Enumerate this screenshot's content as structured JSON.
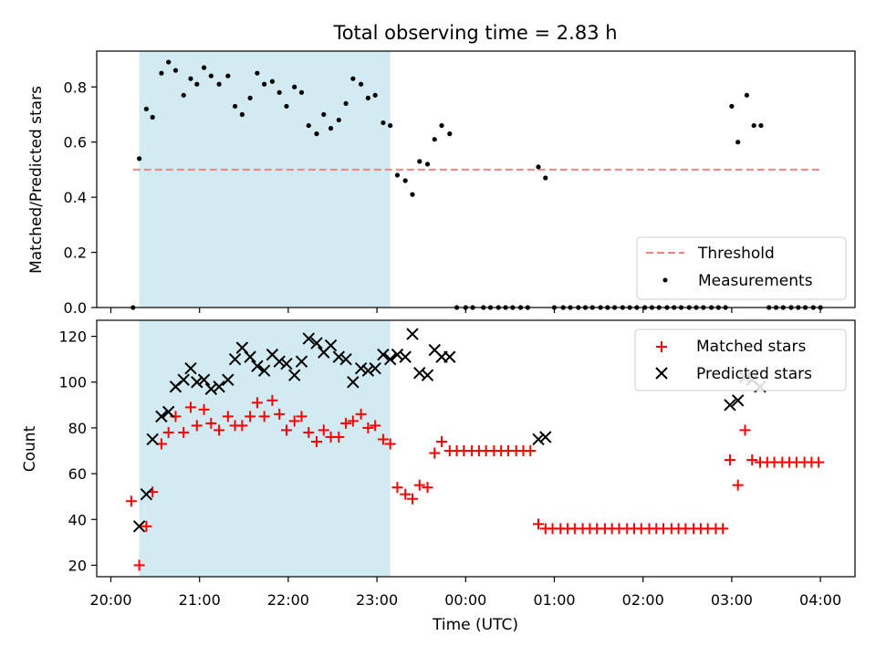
{
  "figure": {
    "title": "Total observing time = 2.83 h",
    "x_axis_label": "Time (UTC)",
    "x_tick_labels": [
      "20:00",
      "21:00",
      "22:00",
      "23:00",
      "00:00",
      "01:00",
      "02:00",
      "03:00",
      "04:00"
    ],
    "x_unit": "hours after 20:00 UTC",
    "shaded_interval": [
      0.32,
      3.15
    ],
    "shade_color": "#add8e6"
  },
  "chart_data": [
    {
      "type": "scatter",
      "ylabel": "Matched/Predicted stars",
      "ylim": [
        0,
        0.93
      ],
      "yticks": [
        "0.0",
        "0.2",
        "0.4",
        "0.6",
        "0.8"
      ],
      "grid": false,
      "legend": {
        "placement": "lower-right",
        "entries": [
          "Threshold",
          "Measurements"
        ]
      },
      "threshold": {
        "name": "Threshold",
        "y": 0.5,
        "x_range": [
          0.25,
          8.0
        ],
        "color": "#ff7f7f",
        "style": "dashed"
      },
      "series": [
        {
          "name": "Measurements",
          "marker": "dot",
          "color": "#000000",
          "points": [
            [
              0.25,
              0.0
            ],
            [
              0.32,
              0.54
            ],
            [
              0.4,
              0.72
            ],
            [
              0.47,
              0.69
            ],
            [
              0.57,
              0.85
            ],
            [
              0.65,
              0.89
            ],
            [
              0.73,
              0.86
            ],
            [
              0.82,
              0.77
            ],
            [
              0.9,
              0.83
            ],
            [
              0.97,
              0.81
            ],
            [
              1.05,
              0.87
            ],
            [
              1.13,
              0.84
            ],
            [
              1.22,
              0.81
            ],
            [
              1.32,
              0.84
            ],
            [
              1.4,
              0.73
            ],
            [
              1.48,
              0.7
            ],
            [
              1.57,
              0.76
            ],
            [
              1.65,
              0.85
            ],
            [
              1.73,
              0.81
            ],
            [
              1.82,
              0.82
            ],
            [
              1.9,
              0.78
            ],
            [
              1.98,
              0.73
            ],
            [
              2.07,
              0.8
            ],
            [
              2.15,
              0.78
            ],
            [
              2.23,
              0.66
            ],
            [
              2.32,
              0.63
            ],
            [
              2.4,
              0.7
            ],
            [
              2.48,
              0.65
            ],
            [
              2.57,
              0.68
            ],
            [
              2.65,
              0.74
            ],
            [
              2.73,
              0.83
            ],
            [
              2.82,
              0.81
            ],
            [
              2.9,
              0.76
            ],
            [
              2.98,
              0.77
            ],
            [
              3.07,
              0.67
            ],
            [
              3.15,
              0.66
            ],
            [
              3.23,
              0.48
            ],
            [
              3.32,
              0.46
            ],
            [
              3.4,
              0.41
            ],
            [
              3.48,
              0.53
            ],
            [
              3.57,
              0.52
            ],
            [
              3.65,
              0.61
            ],
            [
              3.73,
              0.66
            ],
            [
              3.82,
              0.63
            ],
            [
              3.9,
              0.0
            ],
            [
              4.0,
              0.0
            ],
            [
              4.08,
              0.0
            ],
            [
              4.2,
              0.0
            ],
            [
              4.28,
              0.0
            ],
            [
              4.37,
              0.0
            ],
            [
              4.45,
              0.0
            ],
            [
              4.53,
              0.0
            ],
            [
              4.62,
              0.0
            ],
            [
              4.7,
              0.0
            ],
            [
              4.82,
              0.51
            ],
            [
              4.9,
              0.47
            ],
            [
              5.0,
              0.0
            ],
            [
              5.1,
              0.0
            ],
            [
              5.18,
              0.0
            ],
            [
              5.27,
              0.0
            ],
            [
              5.35,
              0.0
            ],
            [
              5.43,
              0.0
            ],
            [
              5.52,
              0.0
            ],
            [
              5.6,
              0.0
            ],
            [
              5.68,
              0.0
            ],
            [
              5.77,
              0.0
            ],
            [
              5.85,
              0.0
            ],
            [
              5.93,
              0.0
            ],
            [
              6.02,
              0.0
            ],
            [
              6.1,
              0.0
            ],
            [
              6.18,
              0.0
            ],
            [
              6.27,
              0.0
            ],
            [
              6.35,
              0.0
            ],
            [
              6.43,
              0.0
            ],
            [
              6.52,
              0.0
            ],
            [
              6.6,
              0.0
            ],
            [
              6.68,
              0.0
            ],
            [
              6.77,
              0.0
            ],
            [
              6.85,
              0.0
            ],
            [
              6.93,
              0.0
            ],
            [
              7.0,
              0.73
            ],
            [
              7.07,
              0.6
            ],
            [
              7.17,
              0.77
            ],
            [
              7.25,
              0.66
            ],
            [
              7.33,
              0.66
            ],
            [
              7.42,
              0.0
            ],
            [
              7.5,
              0.0
            ],
            [
              7.58,
              0.0
            ],
            [
              7.67,
              0.0
            ],
            [
              7.75,
              0.0
            ],
            [
              7.83,
              0.0
            ],
            [
              7.92,
              0.0
            ],
            [
              8.0,
              0.0
            ]
          ]
        }
      ]
    },
    {
      "type": "scatter",
      "ylabel": "Count",
      "ylim": [
        15,
        127
      ],
      "yticks": [
        "20",
        "40",
        "60",
        "80",
        "100",
        "120"
      ],
      "grid": false,
      "legend": {
        "placement": "top-right",
        "entries": [
          "Matched stars",
          "Predicted stars"
        ]
      },
      "series": [
        {
          "name": "Matched stars",
          "marker": "plus",
          "color": "#ff0000",
          "points": [
            [
              0.23,
              48
            ],
            [
              0.32,
              20
            ],
            [
              0.4,
              37
            ],
            [
              0.47,
              52
            ],
            [
              0.57,
              73
            ],
            [
              0.65,
              78
            ],
            [
              0.73,
              85
            ],
            [
              0.82,
              78
            ],
            [
              0.9,
              89
            ],
            [
              0.97,
              81
            ],
            [
              1.05,
              88
            ],
            [
              1.13,
              82
            ],
            [
              1.22,
              79
            ],
            [
              1.32,
              85
            ],
            [
              1.4,
              81
            ],
            [
              1.48,
              81
            ],
            [
              1.57,
              85
            ],
            [
              1.65,
              91
            ],
            [
              1.73,
              85
            ],
            [
              1.82,
              92
            ],
            [
              1.9,
              86
            ],
            [
              1.98,
              79
            ],
            [
              2.07,
              83
            ],
            [
              2.15,
              85
            ],
            [
              2.23,
              78
            ],
            [
              2.32,
              74
            ],
            [
              2.4,
              79
            ],
            [
              2.48,
              76
            ],
            [
              2.57,
              76
            ],
            [
              2.65,
              82
            ],
            [
              2.73,
              83
            ],
            [
              2.82,
              86
            ],
            [
              2.9,
              80
            ],
            [
              2.98,
              81
            ],
            [
              3.07,
              75
            ],
            [
              3.15,
              73
            ],
            [
              3.23,
              54
            ],
            [
              3.32,
              51
            ],
            [
              3.4,
              49
            ],
            [
              3.48,
              55
            ],
            [
              3.57,
              54
            ],
            [
              3.65,
              69
            ],
            [
              3.73,
              74
            ],
            [
              3.82,
              70
            ],
            [
              3.9,
              70
            ],
            [
              3.98,
              70
            ],
            [
              4.07,
              70
            ],
            [
              4.15,
              70
            ],
            [
              4.23,
              70
            ],
            [
              4.32,
              70
            ],
            [
              4.4,
              70
            ],
            [
              4.48,
              70
            ],
            [
              4.57,
              70
            ],
            [
              4.65,
              70
            ],
            [
              4.73,
              70
            ],
            [
              4.82,
              38
            ],
            [
              4.9,
              36
            ],
            [
              4.98,
              36
            ],
            [
              5.07,
              36
            ],
            [
              5.15,
              36
            ],
            [
              5.23,
              36
            ],
            [
              5.32,
              36
            ],
            [
              5.4,
              36
            ],
            [
              5.48,
              36
            ],
            [
              5.57,
              36
            ],
            [
              5.65,
              36
            ],
            [
              5.73,
              36
            ],
            [
              5.82,
              36
            ],
            [
              5.9,
              36
            ],
            [
              5.98,
              36
            ],
            [
              6.07,
              36
            ],
            [
              6.15,
              36
            ],
            [
              6.23,
              36
            ],
            [
              6.32,
              36
            ],
            [
              6.4,
              36
            ],
            [
              6.48,
              36
            ],
            [
              6.57,
              36
            ],
            [
              6.65,
              36
            ],
            [
              6.73,
              36
            ],
            [
              6.82,
              36
            ],
            [
              6.9,
              36
            ],
            [
              6.98,
              66
            ],
            [
              7.07,
              55
            ],
            [
              7.15,
              79
            ],
            [
              7.23,
              66
            ],
            [
              7.32,
              65
            ],
            [
              7.4,
              65
            ],
            [
              7.48,
              65
            ],
            [
              7.57,
              65
            ],
            [
              7.65,
              65
            ],
            [
              7.73,
              65
            ],
            [
              7.82,
              65
            ],
            [
              7.9,
              65
            ],
            [
              7.98,
              65
            ]
          ]
        },
        {
          "name": "Predicted stars",
          "marker": "x",
          "color": "#000000",
          "points": [
            [
              0.32,
              37
            ],
            [
              0.4,
              51
            ],
            [
              0.47,
              75
            ],
            [
              0.57,
              85
            ],
            [
              0.65,
              87
            ],
            [
              0.73,
              98
            ],
            [
              0.82,
              101
            ],
            [
              0.9,
              106
            ],
            [
              0.97,
              100
            ],
            [
              1.05,
              101
            ],
            [
              1.13,
              97
            ],
            [
              1.22,
              98
            ],
            [
              1.32,
              101
            ],
            [
              1.4,
              110
            ],
            [
              1.48,
              115
            ],
            [
              1.57,
              111
            ],
            [
              1.65,
              107
            ],
            [
              1.73,
              105
            ],
            [
              1.82,
              112
            ],
            [
              1.9,
              109
            ],
            [
              1.98,
              108
            ],
            [
              2.07,
              103
            ],
            [
              2.15,
              109
            ],
            [
              2.23,
              119
            ],
            [
              2.32,
              117
            ],
            [
              2.4,
              113
            ],
            [
              2.48,
              116
            ],
            [
              2.57,
              111
            ],
            [
              2.65,
              110
            ],
            [
              2.73,
              100
            ],
            [
              2.82,
              106
            ],
            [
              2.9,
              105
            ],
            [
              2.98,
              106
            ],
            [
              3.07,
              112
            ],
            [
              3.15,
              110
            ],
            [
              3.23,
              112
            ],
            [
              3.32,
              111
            ],
            [
              3.4,
              121
            ],
            [
              3.48,
              104
            ],
            [
              3.57,
              103
            ],
            [
              3.65,
              114
            ],
            [
              3.73,
              111
            ],
            [
              3.82,
              111
            ],
            [
              4.82,
              75
            ],
            [
              4.9,
              76
            ],
            [
              6.98,
              90
            ],
            [
              7.07,
              92
            ],
            [
              7.15,
              102
            ],
            [
              7.23,
              101
            ],
            [
              7.32,
              98
            ]
          ]
        }
      ]
    }
  ]
}
